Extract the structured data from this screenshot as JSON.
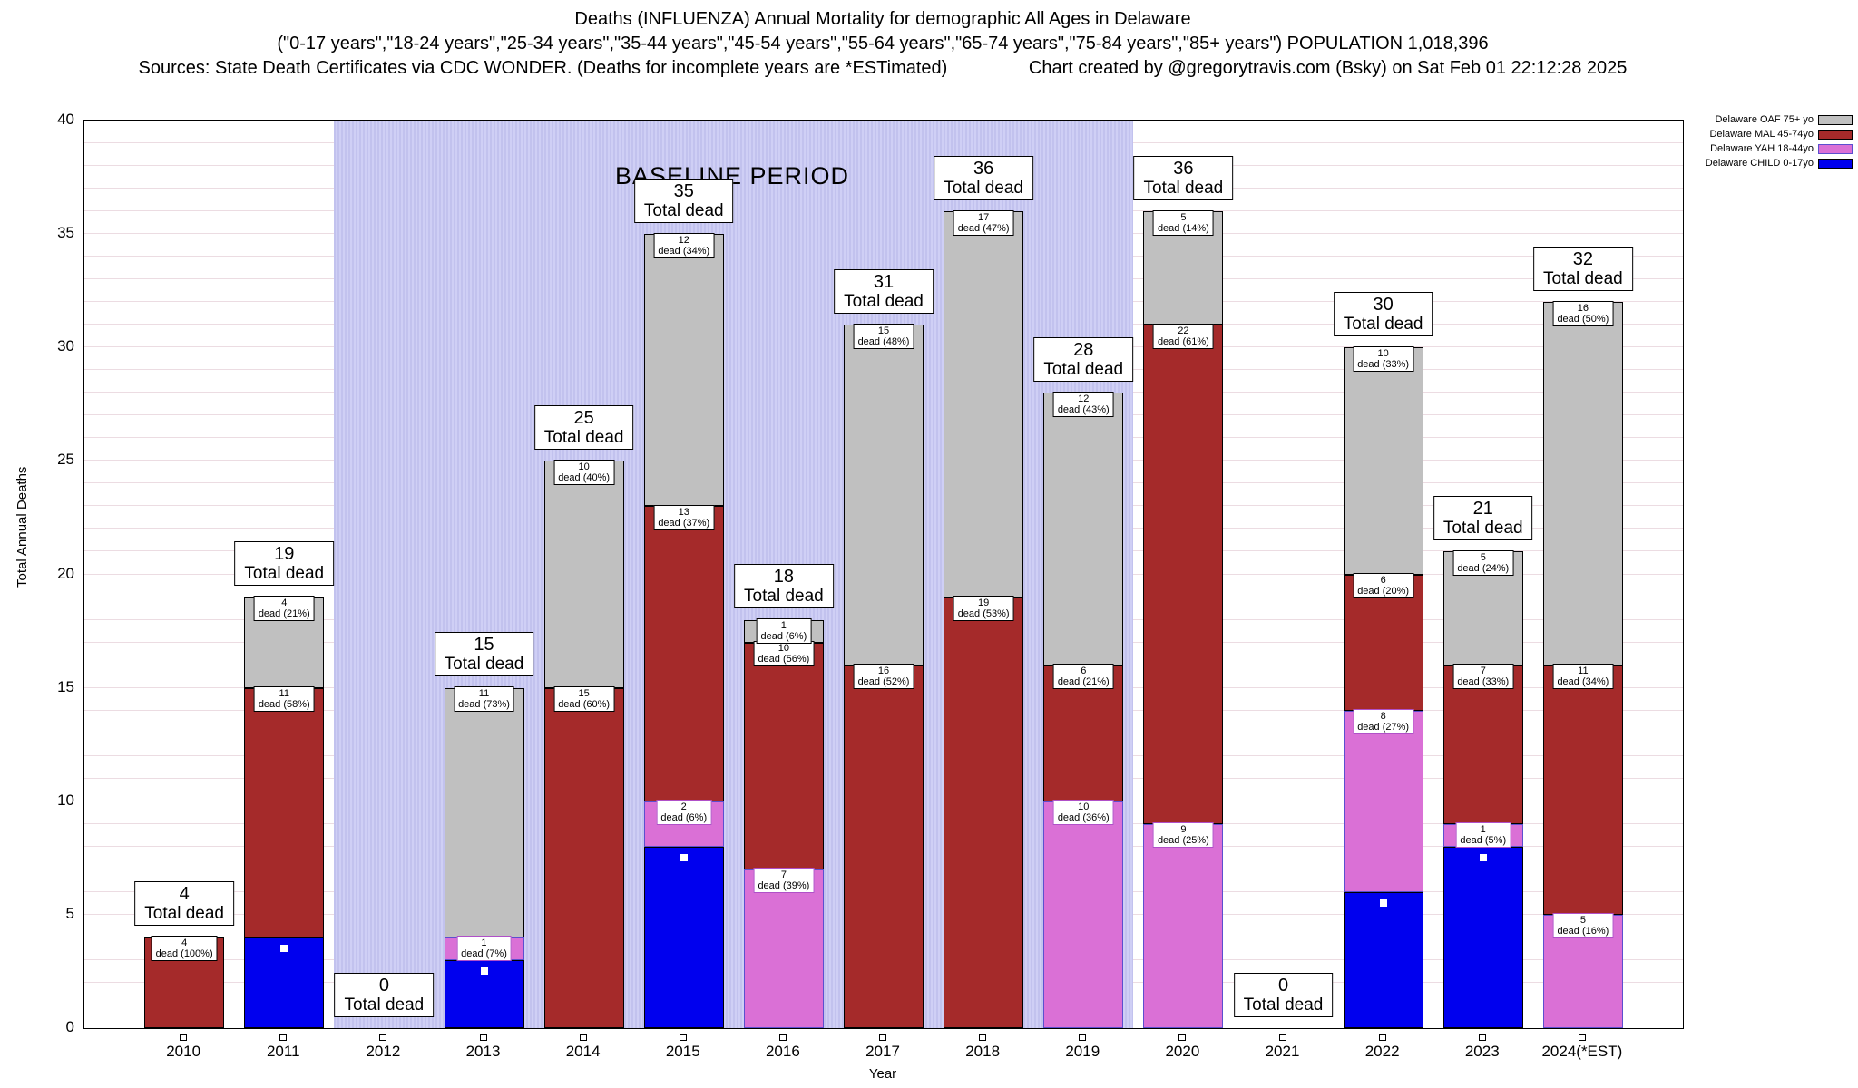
{
  "title": {
    "line1": "Deaths (INFLUENZA) Annual Mortality for demographic All Ages in Delaware",
    "line2": "(\"0-17 years\",\"18-24 years\",\"25-34 years\",\"35-44 years\",\"45-54 years\",\"55-64 years\",\"65-74 years\",\"75-84 years\",\"85+ years\") POPULATION 1,018,396",
    "line3_left": "Sources: State Death Certificates via CDC WONDER. (Deaths for incomplete years are *ESTimated)",
    "line3_right": "Chart created by @gregorytravis.com (Bsky) on Sat Feb 01 22:12:28 2025"
  },
  "axes": {
    "ylabel": "Total Annual Deaths",
    "xlabel": "Year",
    "ylim": [
      0,
      40
    ],
    "yticks": [
      0,
      5,
      10,
      15,
      20,
      25,
      30,
      35,
      40
    ]
  },
  "baseline": {
    "label": "BASELINE PERIOD",
    "start_year": "2012",
    "end_year": "2019"
  },
  "total_label": "Total dead",
  "series_meta": {
    "child": {
      "name": "Delaware CHILD 0-17yo",
      "color": "#0000ee",
      "edge": "#000000",
      "label_border": "#000080"
    },
    "yah": {
      "name": "Delaware YAH 18-44yo",
      "color": "#da70d6",
      "edge": "#5b4fcf",
      "label_border": "#b050c8"
    },
    "mal": {
      "name": "Delaware MAL 45-74yo",
      "color": "#a52a2a",
      "edge": "#000000",
      "label_border": "#000000"
    },
    "oaf": {
      "name": "Delaware OAF 75+ yo",
      "color": "#c0c0c0",
      "edge": "#000000",
      "label_border": "#000000"
    }
  },
  "legend": [
    {
      "label": "Delaware OAF 75+ yo",
      "color": "#c0c0c0",
      "edge": "#000000"
    },
    {
      "label": "Delaware MAL 45-74yo",
      "color": "#a52a2a",
      "edge": "#000000"
    },
    {
      "label": "Delaware YAH 18-44yo",
      "color": "#da70d6",
      "edge": "#5b4fcf"
    },
    {
      "label": "Delaware CHILD 0-17yo",
      "color": "#0000ee",
      "edge": "#000000"
    }
  ],
  "chart_data": {
    "type": "bar",
    "stacked": true,
    "ylim": [
      0,
      40
    ],
    "grid": "horizontal, every 1 unit",
    "legend_position": "top-right",
    "categories": [
      "2010",
      "2011",
      "2012",
      "2013",
      "2014",
      "2015",
      "2016",
      "2017",
      "2018",
      "2019",
      "2020",
      "2021",
      "2022",
      "2023",
      "2024(*EST)"
    ],
    "totals": [
      4,
      19,
      0,
      15,
      25,
      35,
      18,
      31,
      36,
      28,
      36,
      0,
      30,
      21,
      32
    ],
    "series": [
      {
        "key": "child",
        "name": "Delaware CHILD 0-17yo",
        "values": [
          0,
          4,
          0,
          3,
          0,
          8,
          0,
          0,
          0,
          0,
          0,
          0,
          6,
          8,
          0
        ]
      },
      {
        "key": "yah",
        "name": "Delaware YAH 18-44yo",
        "values": [
          0,
          0,
          0,
          1,
          0,
          2,
          7,
          0,
          0,
          10,
          9,
          0,
          8,
          1,
          5
        ]
      },
      {
        "key": "mal",
        "name": "Delaware MAL 45-74yo",
        "values": [
          4,
          11,
          0,
          0,
          15,
          13,
          10,
          16,
          19,
          6,
          22,
          0,
          6,
          7,
          11
        ]
      },
      {
        "key": "oaf",
        "name": "Delaware OAF 75+ yo",
        "values": [
          0,
          4,
          0,
          11,
          10,
          12,
          1,
          15,
          17,
          12,
          5,
          0,
          10,
          5,
          16
        ]
      }
    ],
    "segment_pcts": {
      "child": [
        "",
        "",
        "",
        "",
        "",
        "",
        "",
        "",
        "",
        "",
        "",
        "",
        "",
        "",
        ""
      ],
      "yah": [
        "",
        "",
        "",
        "7%",
        "",
        "6%",
        "39%",
        "",
        "",
        "36%",
        "25%",
        "",
        "27%",
        "5%",
        "16%"
      ],
      "mal": [
        "100%",
        "58%",
        "",
        "",
        "60%",
        "37%",
        "56%",
        "52%",
        "53%",
        "21%",
        "61%",
        "",
        "20%",
        "33%",
        "34%"
      ],
      "oaf": [
        "",
        "21%",
        "",
        "73%",
        "40%",
        "34%",
        "6%",
        "48%",
        "47%",
        "43%",
        "14%",
        "",
        "33%",
        "24%",
        "50%"
      ]
    },
    "segment_label_format": "{value} / dead ({pct})",
    "total_label_format": "{total} / Total dead"
  }
}
